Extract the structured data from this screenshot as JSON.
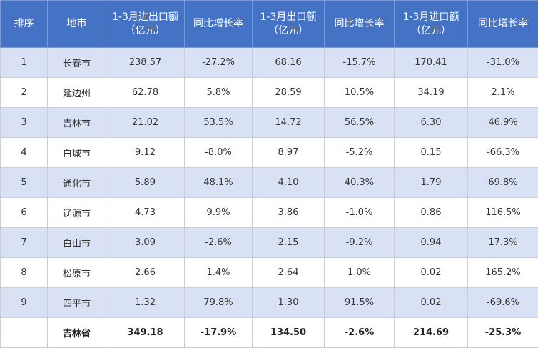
{
  "headers": [
    {
      "lines": [
        "排序"
      ]
    },
    {
      "lines": [
        "地市"
      ]
    },
    {
      "lines": [
        "1-3月进出口额",
        "（亿元）"
      ]
    },
    {
      "lines": [
        "同比增长率"
      ]
    },
    {
      "lines": [
        "1-3月出口额",
        "（亿元）"
      ]
    },
    {
      "lines": [
        "同比增长率"
      ]
    },
    {
      "lines": [
        "1-3月进口额",
        "（亿元）"
      ]
    },
    {
      "lines": [
        "同比增长率"
      ]
    }
  ],
  "rows": [
    [
      "1",
      "长春市",
      "238.57",
      "-27.2%",
      "68.16",
      "-15.7%",
      "170.41",
      "-31.0%"
    ],
    [
      "2",
      "延边州",
      "62.78",
      "5.8%",
      "28.59",
      "10.5%",
      "34.19",
      "2.1%"
    ],
    [
      "3",
      "吉林市",
      "21.02",
      "53.5%",
      "14.72",
      "56.5%",
      "6.30",
      "46.9%"
    ],
    [
      "4",
      "白城市",
      "9.12",
      "-8.0%",
      "8.97",
      "-5.2%",
      "0.15",
      "-66.3%"
    ],
    [
      "5",
      "通化市",
      "5.89",
      "48.1%",
      "4.10",
      "40.3%",
      "1.79",
      "69.8%"
    ],
    [
      "6",
      "辽源市",
      "4.73",
      "9.9%",
      "3.86",
      "-1.0%",
      "0.86",
      "116.5%"
    ],
    [
      "7",
      "白山市",
      "3.09",
      "-2.6%",
      "2.15",
      "-9.2%",
      "0.94",
      "17.3%"
    ],
    [
      "8",
      "松原市",
      "2.66",
      "1.4%",
      "2.64",
      "1.0%",
      "0.02",
      "165.2%"
    ],
    [
      "9",
      "四平市",
      "1.32",
      "79.8%",
      "1.30",
      "91.5%",
      "0.02",
      "-69.6%"
    ]
  ],
  "total": [
    "",
    "吉林省",
    "349.18",
    "-17.9%",
    "134.50",
    "-2.6%",
    "214.69",
    "-25.3%"
  ],
  "colors": {
    "header_bg": "#4472c4",
    "stripe_bg": "#d9e1f4",
    "border": "#c9cdd6"
  }
}
